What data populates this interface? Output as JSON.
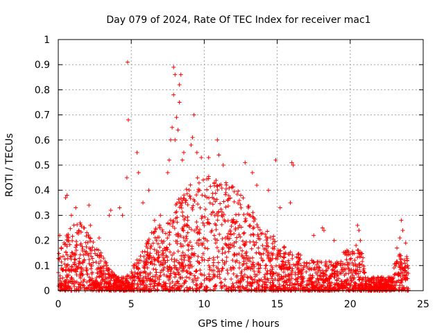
{
  "chart_data": {
    "type": "scatter",
    "title": "Day 079 of 2024, Rate Of TEC Index for receiver mac1",
    "xlabel": "GPS time / hours",
    "ylabel": "ROTI / TECUs",
    "xlim": [
      0,
      25
    ],
    "ylim": [
      0,
      1
    ],
    "xticks": [
      0,
      5,
      10,
      15,
      20,
      25
    ],
    "xtick_labels": [
      "0",
      "5",
      "10",
      "15",
      "20",
      "25"
    ],
    "yticks": [
      0,
      0.1,
      0.2,
      0.3,
      0.4,
      0.5,
      0.6,
      0.7,
      0.8,
      0.9,
      1
    ],
    "ytick_labels": [
      "0",
      "0.1",
      "0.2",
      "0.3",
      "0.4",
      "0.5",
      "0.6",
      "0.7",
      "0.8",
      "0.9",
      "1"
    ],
    "grid": true,
    "marker": "+",
    "color": "#ff0000",
    "series": [
      {
        "name": "ROTI",
        "points": [
          [
            4.75,
            0.91
          ],
          [
            4.8,
            0.68
          ],
          [
            5.4,
            0.55
          ],
          [
            4.7,
            0.45
          ],
          [
            5.5,
            0.47
          ],
          [
            7.9,
            0.89
          ],
          [
            8.0,
            0.86
          ],
          [
            8.4,
            0.86
          ],
          [
            8.3,
            0.82
          ],
          [
            7.9,
            0.78
          ],
          [
            8.3,
            0.75
          ],
          [
            9.3,
            0.7
          ],
          [
            8.1,
            0.69
          ],
          [
            7.8,
            0.65
          ],
          [
            8.2,
            0.64
          ],
          [
            8.0,
            0.6
          ],
          [
            7.7,
            0.6
          ],
          [
            9.2,
            0.61
          ],
          [
            9.1,
            0.58
          ],
          [
            10.9,
            0.6
          ],
          [
            8.6,
            0.55
          ],
          [
            8.5,
            0.52
          ],
          [
            9.5,
            0.55
          ],
          [
            9.8,
            0.53
          ],
          [
            10.3,
            0.53
          ],
          [
            11.0,
            0.54
          ],
          [
            11.3,
            0.5
          ],
          [
            12.8,
            0.51
          ],
          [
            13.3,
            0.47
          ],
          [
            14.9,
            0.52
          ],
          [
            16.1,
            0.5
          ],
          [
            16.0,
            0.51
          ],
          [
            15.9,
            0.35
          ],
          [
            15.2,
            0.33
          ],
          [
            14.4,
            0.4
          ],
          [
            13.6,
            0.42
          ],
          [
            12.5,
            0.38
          ],
          [
            18.1,
            0.25
          ],
          [
            18.2,
            0.24
          ],
          [
            17.5,
            0.22
          ],
          [
            18.9,
            0.2
          ],
          [
            20.5,
            0.26
          ],
          [
            20.6,
            0.24
          ],
          [
            20.7,
            0.2
          ],
          [
            20.4,
            0.18
          ],
          [
            20.6,
            0.15
          ],
          [
            23.5,
            0.28
          ],
          [
            23.6,
            0.24
          ],
          [
            23.4,
            0.21
          ],
          [
            23.8,
            0.19
          ],
          [
            23.2,
            0.17
          ],
          [
            23.9,
            0.12
          ],
          [
            0.1,
            0.22
          ],
          [
            0.5,
            0.37
          ],
          [
            0.6,
            0.38
          ],
          [
            0.9,
            0.3
          ],
          [
            1.2,
            0.33
          ],
          [
            1.5,
            0.27
          ],
          [
            2.1,
            0.34
          ],
          [
            2.2,
            0.26
          ],
          [
            2.8,
            0.21
          ],
          [
            3.5,
            0.3
          ],
          [
            3.6,
            0.32
          ],
          [
            4.2,
            0.33
          ],
          [
            4.4,
            0.3
          ],
          [
            5.8,
            0.35
          ],
          [
            6.2,
            0.4
          ],
          [
            6.6,
            0.28
          ],
          [
            7.0,
            0.3
          ],
          [
            7.5,
            0.47
          ],
          [
            7.6,
            0.52
          ]
        ]
      }
    ]
  }
}
